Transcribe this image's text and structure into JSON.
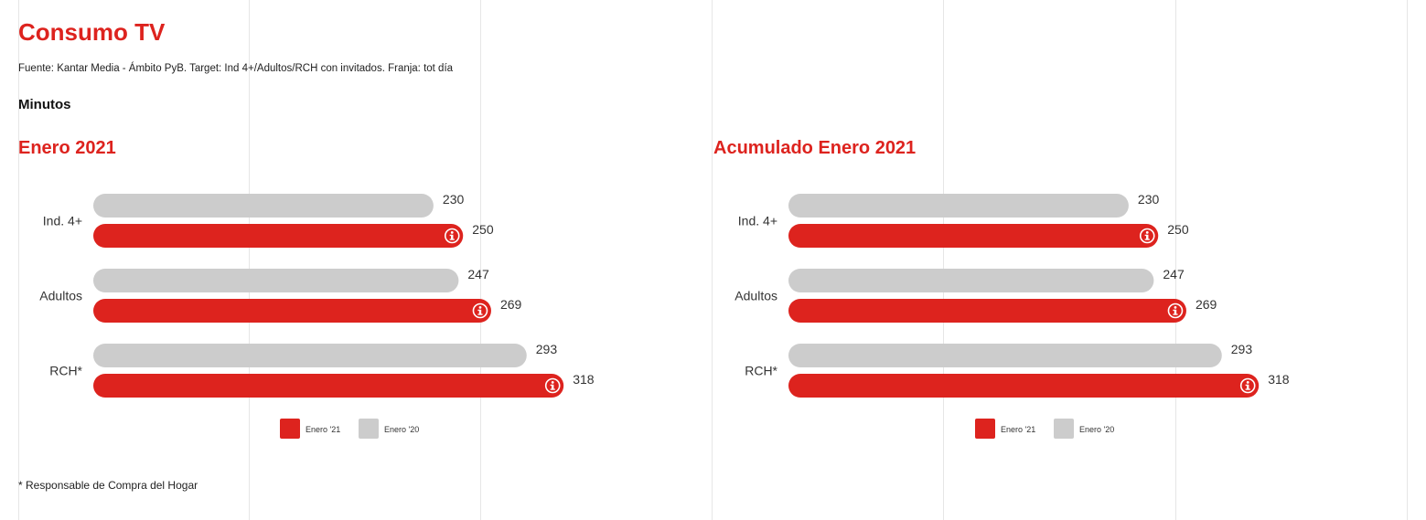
{
  "header": {
    "title": "Consumo TV",
    "source": "Fuente: Kantar Media - Ámbito PyB. Target: Ind 4+/Adultos/RCH con invitados. Franja: tot día",
    "unit_label": "Minutos"
  },
  "footnote": "* Responsable de Compra del Hogar",
  "colors": {
    "enero_21": "#dd231e",
    "enero_20": "#cccccc",
    "title_red": "#dd231e"
  },
  "icon": "info-icon",
  "chart_data": [
    {
      "type": "bar",
      "orientation": "horizontal",
      "title": "Enero 2021",
      "categories": [
        "Ind. 4+",
        "Adultos",
        "RCH*"
      ],
      "series": [
        {
          "name": "Enero '20",
          "values": [
            230,
            247,
            293
          ]
        },
        {
          "name": "Enero '21",
          "values": [
            250,
            269,
            318
          ]
        }
      ],
      "legend": [
        "Enero '21",
        "Enero '20"
      ],
      "legend_position": "bottom",
      "xlim": [
        0,
        340
      ],
      "grid": true
    },
    {
      "type": "bar",
      "orientation": "horizontal",
      "title": "Acumulado Enero 2021",
      "categories": [
        "Ind. 4+",
        "Adultos",
        "RCH*"
      ],
      "series": [
        {
          "name": "Enero '20",
          "values": [
            230,
            247,
            293
          ]
        },
        {
          "name": "Enero '21",
          "values": [
            250,
            269,
            318
          ]
        }
      ],
      "legend": [
        "Enero '21",
        "Enero '20"
      ],
      "legend_position": "bottom",
      "xlim": [
        0,
        340
      ],
      "grid": true
    }
  ]
}
